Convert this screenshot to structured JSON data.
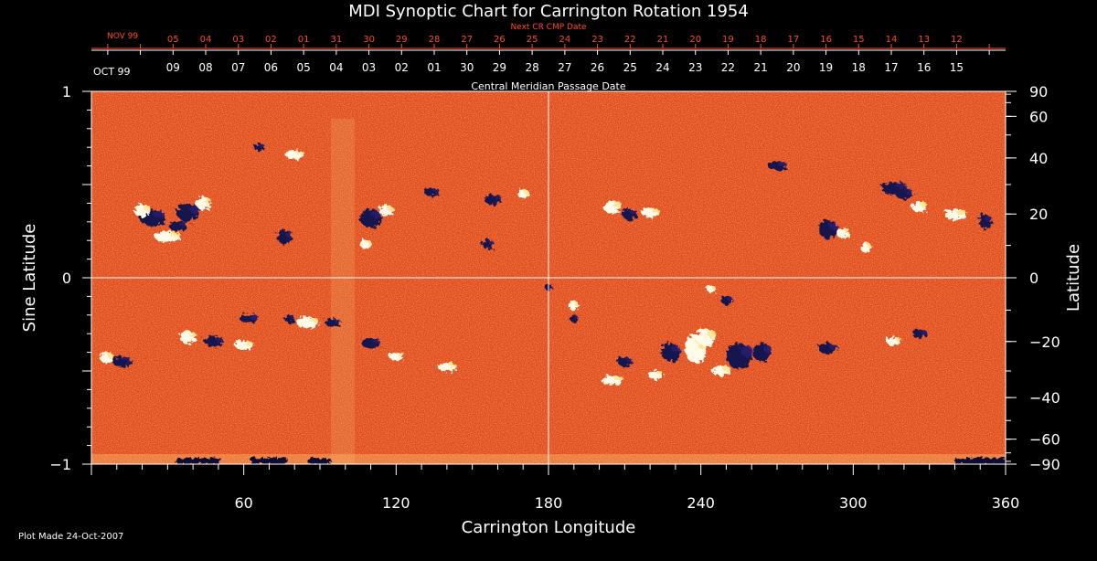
{
  "chart_data": {
    "type": "heatmap",
    "title": "MDI Synoptic Chart for Carrington Rotation 1954",
    "xlabel": "Carrington Longitude",
    "ylabel_left": "Sine Latitude",
    "ylabel_right": "Latitude",
    "xlim": [
      0,
      360
    ],
    "ylim_sine": [
      -1,
      1
    ],
    "x_ticks": [
      60,
      120,
      180,
      240,
      300,
      360
    ],
    "y_ticks_sine": [
      1,
      0,
      -1
    ],
    "y_ticks_deg": [
      90,
      60,
      40,
      20,
      0,
      -20,
      -40,
      -60,
      -90
    ],
    "grid": "central lines at longitude 180 and latitude 0",
    "date_axis_top": {
      "label": "Next CR CMP Date",
      "month_label": "NOV 99",
      "ticks": [
        "05",
        "04",
        "03",
        "02",
        "01",
        "31",
        "30",
        "29",
        "28",
        "27",
        "26",
        "25",
        "24",
        "23",
        "22",
        "21",
        "20",
        "19",
        "18",
        "17",
        "16",
        "15",
        "14",
        "13",
        "12"
      ]
    },
    "date_axis_bottom": {
      "label": "Central Meridian Passage Date",
      "month_label": "OCT 99",
      "ticks": [
        "09",
        "08",
        "07",
        "06",
        "05",
        "04",
        "03",
        "02",
        "01",
        "30",
        "29",
        "28",
        "27",
        "26",
        "25",
        "24",
        "23",
        "22",
        "21",
        "20",
        "19",
        "18",
        "17",
        "16",
        "15"
      ]
    },
    "footer": "Plot Made 24-Oct-2007",
    "colors": {
      "background": "#000000",
      "field_base": "#e8501a",
      "positive_polarity": "#ffffff",
      "negative_polarity": "#10104a",
      "next_cr_axis": "#ff4a2a",
      "axes": "#ffffff"
    }
  }
}
